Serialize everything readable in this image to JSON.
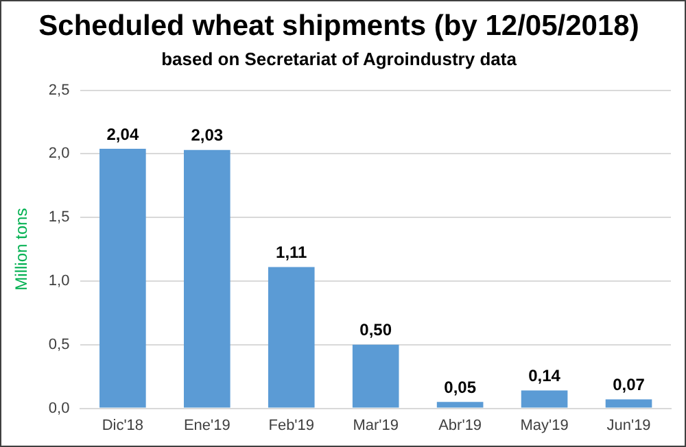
{
  "chart_data": {
    "type": "bar",
    "title": "Scheduled wheat shipments (by 12/05/2018)",
    "subtitle": "based on Secretariat of Agroindustry data",
    "ylabel": "Million tons",
    "categories": [
      "Dic'18",
      "Ene'19",
      "Feb'19",
      "Mar'19",
      "Abr'19",
      "May'19",
      "Jun'19"
    ],
    "values": [
      2.04,
      2.03,
      1.11,
      0.5,
      0.05,
      0.14,
      0.07
    ],
    "value_labels": [
      "2,04",
      "2,03",
      "1,11",
      "0,50",
      "0,05",
      "0,14",
      "0,07"
    ],
    "color": "#5b9bd5",
    "ylim": [
      0,
      2.5
    ],
    "yticks": [
      {
        "value": 0,
        "label": "0,0"
      },
      {
        "value": 0.5,
        "label": "0,5"
      },
      {
        "value": 1,
        "label": "1,0"
      },
      {
        "value": 1.5,
        "label": "1,5"
      },
      {
        "value": 2,
        "label": "2,0"
      },
      {
        "value": 2.5,
        "label": "2,5"
      }
    ],
    "grid": "y"
  }
}
